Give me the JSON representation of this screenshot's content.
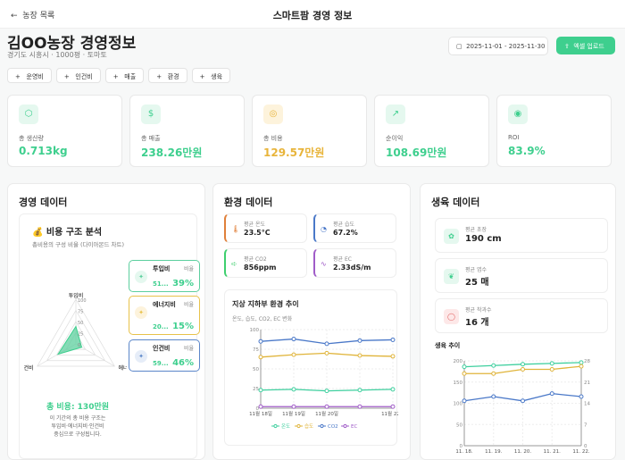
{
  "header": {
    "back_label": "농장 목록",
    "title": "스마트팜 경영 정보"
  },
  "farm": {
    "title": "김OO농장 경영정보",
    "subtitle": "경기도 시흥시 · 1000평 · 토마토",
    "date_range": "2025-11-01 - 2025-11-30",
    "upload_label": "엑셀 업로드"
  },
  "chips": [
    "운영비",
    "인건비",
    "매출",
    "환경",
    "생육"
  ],
  "kpis": [
    {
      "label": "총 생산량",
      "value": "0.713kg",
      "icon": "box-icon",
      "color": "#3ecf8e"
    },
    {
      "label": "총 매출",
      "value": "238.26만원",
      "icon": "dollar-icon",
      "color": "#3ecf8e"
    },
    {
      "label": "총 비용",
      "value": "129.57만원",
      "icon": "coins-icon",
      "color": "#e8b43a"
    },
    {
      "label": "순이익",
      "value": "108.69만원",
      "icon": "trending-up-icon",
      "color": "#3ecf8e"
    },
    {
      "label": "ROI",
      "value": "83.9%",
      "icon": "target-icon",
      "color": "#3ecf8e"
    }
  ],
  "management": {
    "title": "경영 데이터",
    "cost_title": "💰 비용 구조 분석",
    "cost_sub": "총비용의 구성 비율 (다이아몬드 차트)",
    "radar": {
      "axes": [
        "투입비",
        "에너",
        "건비"
      ],
      "ticks": [
        "100",
        "75",
        "50",
        "25",
        "0"
      ],
      "values": [
        39,
        15,
        46
      ]
    },
    "items": [
      {
        "name": "투입비",
        "amount": "51...",
        "ratio_label": "비율",
        "ratio": "39%",
        "color": "#5ccf9e"
      },
      {
        "name": "에너지비",
        "amount": "20...",
        "ratio_label": "비율",
        "ratio": "15%",
        "color": "#e8c24a"
      },
      {
        "name": "인건비",
        "amount": "59...",
        "ratio_label": "비율",
        "ratio": "46%",
        "color": "#5b86c9"
      }
    ],
    "total": "총 비용: 130만원",
    "desc": [
      "이 기간의 총 비용 구조는",
      "투입비·에너지비·인건비",
      "중심으로 구성됩니다."
    ]
  },
  "environment": {
    "title": "환경 데이터",
    "cards": [
      {
        "label": "평균 온도",
        "value": "23.5°C",
        "color": "#e0803a",
        "icon": "thermometer-icon"
      },
      {
        "label": "평균 습도",
        "value": "67.2%",
        "color": "#4a78c8",
        "icon": "droplet-icon"
      },
      {
        "label": "평균 CO2",
        "value": "856ppm",
        "color": "#3ecf6e",
        "icon": "wind-icon"
      },
      {
        "label": "평균 EC",
        "value": "2.33dS/m",
        "color": "#a05cc8",
        "icon": "activity-icon"
      }
    ],
    "chart_title": "지상 지하부 환경 추이",
    "chart_sub": "온도, 습도, CO2, EC 변화"
  },
  "growth": {
    "title": "생육 데이터",
    "cards": [
      {
        "label": "평균 초장",
        "value": "190 cm",
        "icon": "sprout-icon"
      },
      {
        "label": "평균 엽수",
        "value": "25 매",
        "icon": "leaf-icon"
      },
      {
        "label": "평균 착과수",
        "value": "16 개",
        "icon": "apple-icon"
      }
    ],
    "chart_title": "생육 추이"
  },
  "chart_data": [
    {
      "type": "line",
      "title": "지상 지하부 환경 추이",
      "subtitle": "온도, 습도, CO2, EC 변화",
      "categories": [
        "11월 18일",
        "11월 19일",
        "11월 20일",
        "",
        "11월 22일"
      ],
      "ylim": [
        0,
        100
      ],
      "yticks": [
        "0",
        "25",
        "50",
        "75",
        "100"
      ],
      "grid": true,
      "legend": "bottom",
      "series": [
        {
          "name": "온도",
          "color": "#3ecf9e",
          "values": [
            23,
            24,
            22,
            23,
            24
          ]
        },
        {
          "name": "습도",
          "color": "#e0b43a",
          "values": [
            65,
            68,
            70,
            67,
            66
          ]
        },
        {
          "name": "CO2",
          "color": "#4a78c8",
          "values": [
            85,
            88,
            82,
            86,
            87
          ]
        },
        {
          "name": "EC",
          "color": "#a05cc8",
          "values": [
            2,
            2,
            2,
            2,
            2
          ]
        }
      ]
    },
    {
      "type": "line",
      "title": "생육 추이",
      "categories": [
        "11. 18.",
        "11. 19.",
        "11. 20.",
        "11. 21.",
        "11. 22."
      ],
      "ylim": [
        0,
        200
      ],
      "yticks": [
        "0",
        "50",
        "100",
        "150",
        "200"
      ],
      "y2lim": [
        0,
        28
      ],
      "y2ticks": [
        "0",
        "7",
        "14",
        "21",
        "28"
      ],
      "grid": true,
      "series": [
        {
          "color": "#3ecf9e",
          "axis": "left",
          "values": [
            186,
            189,
            192,
            194,
            196
          ]
        },
        {
          "color": "#e0b43a",
          "axis": "right",
          "values": [
            23.8,
            23.8,
            25.2,
            25.2,
            26.2
          ]
        },
        {
          "color": "#4a78c8",
          "axis": "right",
          "values": [
            14.8,
            16.2,
            14.8,
            17.2,
            16.2
          ]
        }
      ]
    }
  ]
}
